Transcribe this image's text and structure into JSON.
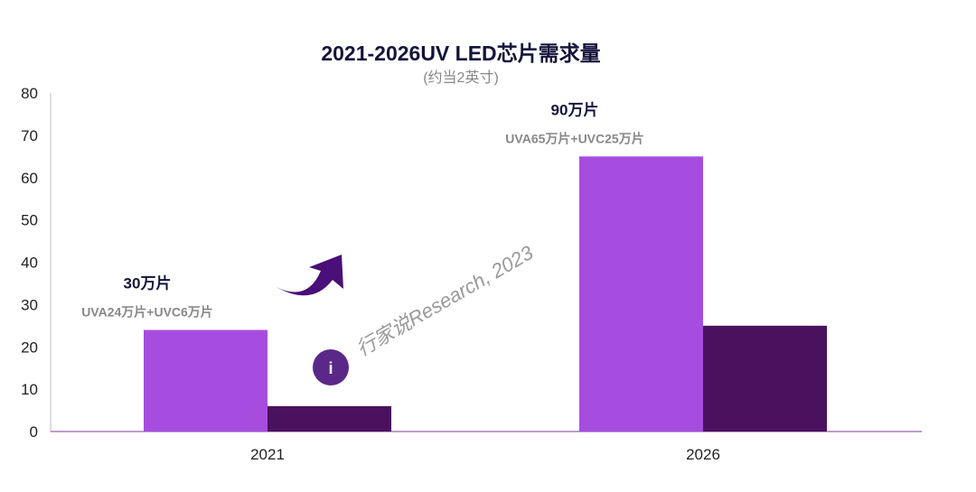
{
  "chart_data": {
    "type": "bar",
    "title": "2021-2026UV LED芯片需求量",
    "subtitle": "(约当2英寸)",
    "categories": [
      "2021",
      "2026"
    ],
    "series": [
      {
        "values": [
          24,
          65
        ],
        "color": "#a64ddf"
      },
      {
        "values": [
          6,
          25
        ],
        "color": "#4a125e"
      }
    ],
    "annotations": [
      {
        "total": "30万片",
        "detail": "UVA24万片+UVC6万片"
      },
      {
        "total": "90万片",
        "detail": "UVA65万片+UVC25万片"
      }
    ],
    "ylim": [
      0,
      80
    ],
    "yticks": [
      0,
      10,
      20,
      30,
      40,
      50,
      60,
      70,
      80
    ],
    "grid": false,
    "watermark": "行家说Research, 2023"
  }
}
